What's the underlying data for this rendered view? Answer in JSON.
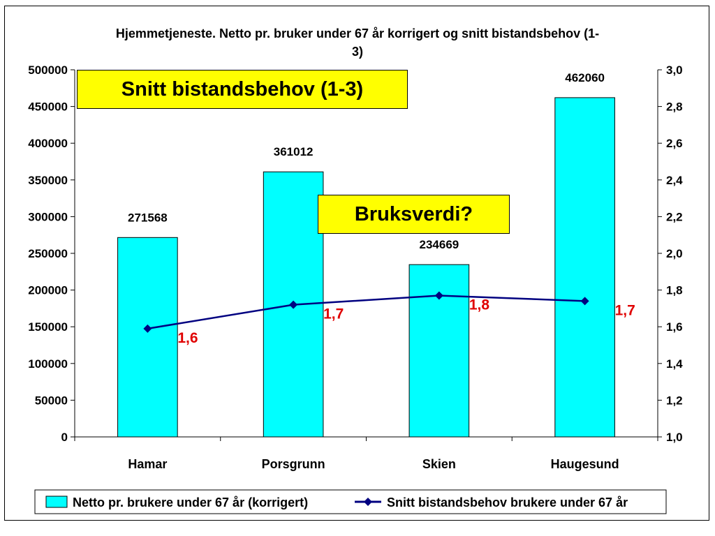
{
  "chart_data": {
    "type": "bar",
    "title_line1": "Hjemmetjeneste. Netto pr. bruker under 67 år korrigert og snitt bistandsbehov (1-",
    "title_line2": "3)",
    "categories": [
      "Hamar",
      "Porsgrunn",
      "Skien",
      "Haugesund"
    ],
    "series": [
      {
        "name": "Netto pr. brukere under 67 år (korrigert)",
        "type": "bar",
        "axis": "left",
        "values": [
          271568,
          361012,
          234669,
          462060
        ],
        "labels": [
          "271568",
          "361012",
          "234669",
          "462060"
        ],
        "color": "#00ffff"
      },
      {
        "name": "Snitt bistandsbehov brukere under 67 år",
        "type": "line",
        "axis": "right",
        "values": [
          1.59,
          1.72,
          1.77,
          1.74
        ],
        "labels": [
          "1,6",
          "1,7",
          "1,8",
          "1,7"
        ],
        "color": "#000080",
        "label_color": "#e00000"
      }
    ],
    "y_left": {
      "min": 0,
      "max": 500000,
      "step": 50000,
      "ticks": [
        "0",
        "50000",
        "100000",
        "150000",
        "200000",
        "250000",
        "300000",
        "350000",
        "400000",
        "450000",
        "500000"
      ]
    },
    "y_right": {
      "min": 1.0,
      "max": 3.0,
      "step": 0.2,
      "ticks": [
        "1,0",
        "1,2",
        "1,4",
        "1,6",
        "1,8",
        "2,0",
        "2,2",
        "2,4",
        "2,6",
        "2,8",
        "3,0"
      ]
    },
    "grid": false,
    "legend_position": "bottom"
  },
  "annotations": {
    "callout_1": "Snitt bistandsbehov (1-3)",
    "callout_2": "Bruksverdi?",
    "callout_color": "#ffff00"
  }
}
